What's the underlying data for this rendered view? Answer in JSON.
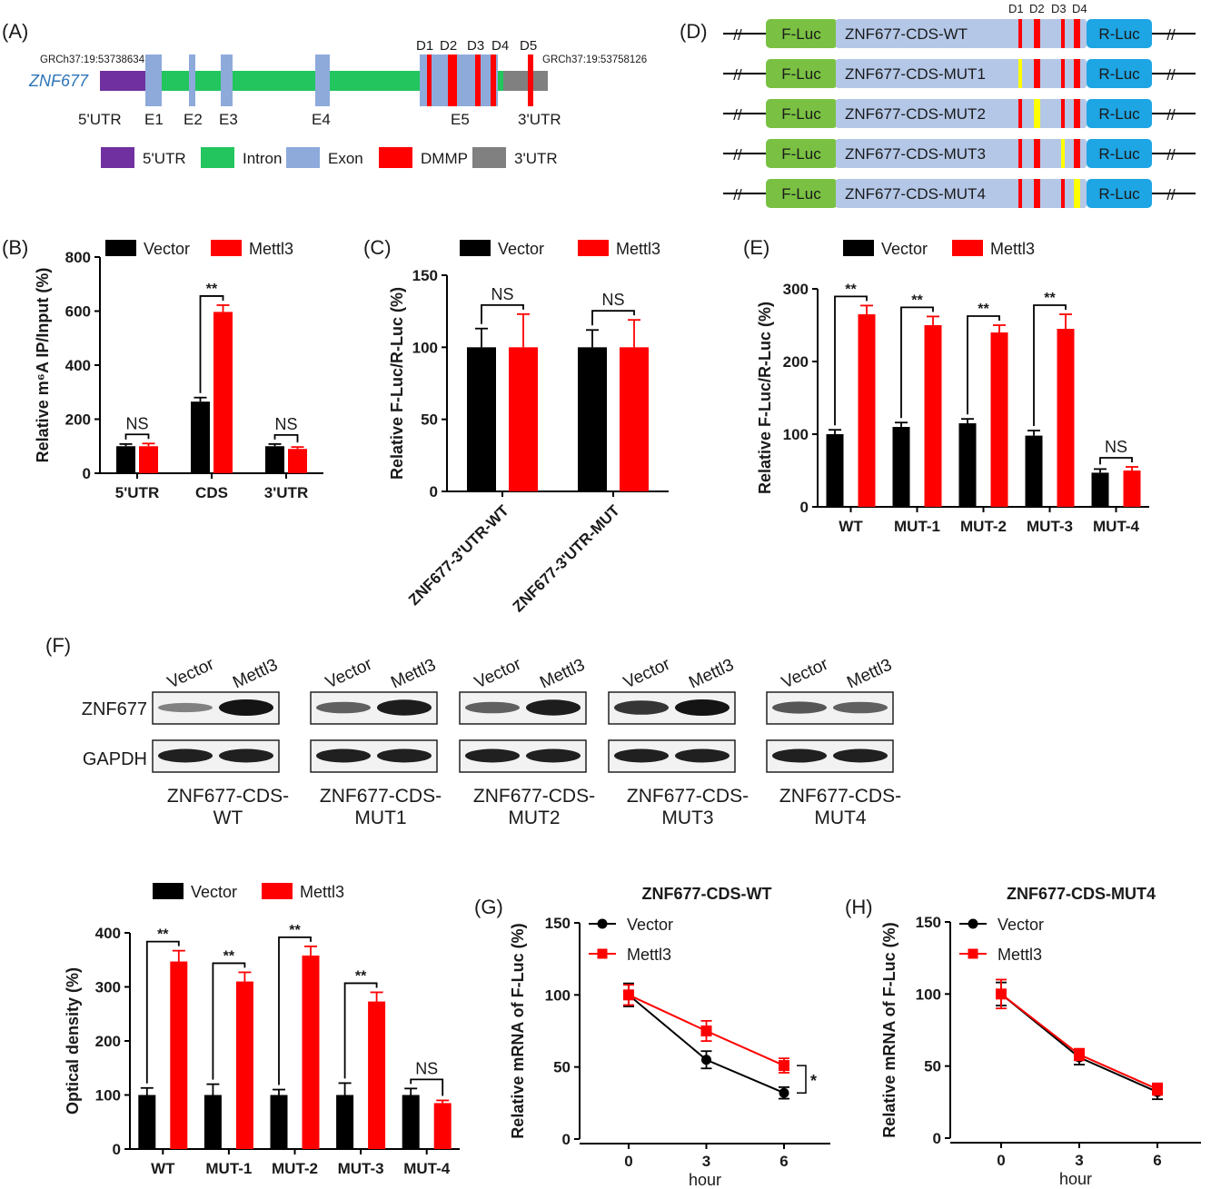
{
  "colors": {
    "vector": "#000000",
    "mettl3": "#ff0000",
    "utr5": "#7030a0",
    "intron": "#22c55e",
    "exon": "#8eaadb",
    "dmmp": "#ff0000",
    "utr3": "#808080",
    "fluc": "#7ac143",
    "rluc": "#1ea5e4",
    "cds": "#b4c7e7",
    "mut_site": "#ffff00"
  },
  "panel_labels": {
    "a": "(A)",
    "b": "(B)",
    "c": "(C)",
    "d": "(D)",
    "e": "(E)",
    "f": "(F)",
    "g": "(G)",
    "h": "(H)"
  },
  "panel_a": {
    "gene": "ZNF677",
    "start_coord": "GRCh37:19:53738634",
    "end_coord": "GRCh37:19:53758126",
    "site_labels": [
      "D1",
      "D2",
      "D3",
      "D4",
      "D5"
    ],
    "region_labels": [
      "5'UTR",
      "E1",
      "E2",
      "E3",
      "E4",
      "E5",
      "3'UTR"
    ],
    "legend": [
      "5'UTR",
      "Intron",
      "Exon",
      "DMMP",
      "3'UTR"
    ]
  },
  "panel_d": {
    "site_labels": [
      "D1",
      "D2",
      "D3",
      "D4"
    ],
    "left_label": "F-Luc",
    "right_label": "R-Luc",
    "break_symbol": "//",
    "constructs": [
      {
        "name": "ZNF677-CDS-WT",
        "mutated": 0
      },
      {
        "name": "ZNF677-CDS-MUT1",
        "mutated": 1
      },
      {
        "name": "ZNF677-CDS-MUT2",
        "mutated": 2
      },
      {
        "name": "ZNF677-CDS-MUT3",
        "mutated": 3
      },
      {
        "name": "ZNF677-CDS-MUT4",
        "mutated": 4
      }
    ]
  },
  "blot": {
    "lane_labels": [
      "Vector",
      "Mettl3"
    ],
    "rows": [
      "ZNF677",
      "GAPDH"
    ],
    "groups": [
      {
        "name_line1": "ZNF677-CDS-",
        "name_line2": "WT",
        "znf677_intensity": [
          0.35,
          1.0
        ]
      },
      {
        "name_line1": "ZNF677-CDS-",
        "name_line2": "MUT1",
        "znf677_intensity": [
          0.55,
          0.95
        ]
      },
      {
        "name_line1": "ZNF677-CDS-",
        "name_line2": "MUT2",
        "znf677_intensity": [
          0.55,
          0.95
        ]
      },
      {
        "name_line1": "ZNF677-CDS-",
        "name_line2": "MUT3",
        "znf677_intensity": [
          0.8,
          1.0
        ]
      },
      {
        "name_line1": "ZNF677-CDS-",
        "name_line2": "MUT4",
        "znf677_intensity": [
          0.6,
          0.55
        ]
      }
    ]
  },
  "chart_data": [
    {
      "id": "B",
      "type": "bar",
      "ylabel": "Relative m⁶A IP/Input (%)",
      "ylim": [
        0,
        800
      ],
      "yticks": [
        0,
        200,
        400,
        600,
        800
      ],
      "categories": [
        "5'UTR",
        "CDS",
        "3'UTR"
      ],
      "series": [
        {
          "name": "Vector",
          "values": [
            100,
            265,
            100
          ],
          "errors": [
            8,
            15,
            8
          ]
        },
        {
          "name": "Mettl3",
          "values": [
            100,
            597,
            90
          ],
          "errors": [
            10,
            25,
            7
          ]
        }
      ],
      "significance": [
        "NS",
        "**",
        "NS"
      ],
      "legend": "top",
      "grid": false
    },
    {
      "id": "C",
      "type": "bar",
      "ylabel": "Relative F-Luc/R-Luc (%)",
      "ylim": [
        0,
        150
      ],
      "yticks": [
        0,
        50,
        100,
        150
      ],
      "categories": [
        "ZNF677-3'UTR-WT",
        "ZNF677-3'UTR-MUT"
      ],
      "series": [
        {
          "name": "Vector",
          "values": [
            100,
            100
          ],
          "errors": [
            13,
            12
          ]
        },
        {
          "name": "Mettl3",
          "values": [
            100,
            100
          ],
          "errors": [
            23,
            19
          ]
        }
      ],
      "significance": [
        "NS",
        "NS"
      ],
      "legend": "top",
      "grid": false
    },
    {
      "id": "E",
      "type": "bar",
      "ylabel": "Relative F-Luc/R-Luc (%)",
      "ylim": [
        0,
        300
      ],
      "yticks": [
        0,
        100,
        200,
        300
      ],
      "categories": [
        "WT",
        "MUT-1",
        "MUT-2",
        "MUT-3",
        "MUT-4"
      ],
      "series": [
        {
          "name": "Vector",
          "values": [
            100,
            110,
            115,
            98,
            47
          ],
          "errors": [
            6,
            6,
            6,
            7,
            5
          ]
        },
        {
          "name": "Mettl3",
          "values": [
            265,
            250,
            240,
            245,
            50
          ],
          "errors": [
            12,
            12,
            10,
            20,
            5
          ]
        }
      ],
      "significance": [
        "**",
        "**",
        "**",
        "**",
        "NS"
      ],
      "legend": "top",
      "grid": false
    },
    {
      "id": "F",
      "type": "bar",
      "ylabel": "Optical density (%)",
      "ylim": [
        0,
        400
      ],
      "yticks": [
        0,
        100,
        200,
        300,
        400
      ],
      "categories": [
        "WT",
        "MUT-1",
        "MUT-2",
        "MUT-3",
        "MUT-4"
      ],
      "series": [
        {
          "name": "Vector",
          "values": [
            100,
            100,
            100,
            100,
            100
          ],
          "errors": [
            13,
            20,
            10,
            22,
            12
          ]
        },
        {
          "name": "Mettl3",
          "values": [
            347,
            310,
            358,
            273,
            85
          ],
          "errors": [
            20,
            17,
            17,
            17,
            5
          ]
        }
      ],
      "significance": [
        "**",
        "**",
        "**",
        "**",
        "NS"
      ],
      "legend": "top",
      "grid": false
    },
    {
      "id": "G",
      "type": "line",
      "title": "ZNF677-CDS-WT",
      "xlabel": "hour",
      "ylabel": "Relative mRNA  of F-Luc (%)",
      "ylim": [
        0,
        150
      ],
      "yticks": [
        0,
        50,
        100,
        150
      ],
      "x": [
        0,
        3,
        6
      ],
      "series": [
        {
          "name": "Vector",
          "values": [
            100,
            55,
            32
          ],
          "errors": [
            8,
            6,
            4
          ]
        },
        {
          "name": "Mettl3",
          "values": [
            100,
            75,
            51
          ],
          "errors": [
            7,
            7,
            5
          ]
        }
      ],
      "significance": "*",
      "legend": "top-left",
      "grid": false
    },
    {
      "id": "H",
      "type": "line",
      "title": "ZNF677-CDS-MUT4",
      "xlabel": "hour",
      "ylabel": "Relative mRNA  of F-Luc (%)",
      "ylim": [
        0,
        150
      ],
      "yticks": [
        0,
        50,
        100,
        150
      ],
      "x": [
        0,
        3,
        6
      ],
      "series": [
        {
          "name": "Vector",
          "values": [
            100,
            56,
            32
          ],
          "errors": [
            8,
            5,
            5
          ]
        },
        {
          "name": "Mettl3",
          "values": [
            100,
            58,
            34
          ],
          "errors": [
            10,
            4,
            4
          ]
        }
      ],
      "legend": "top-left",
      "grid": false
    }
  ]
}
